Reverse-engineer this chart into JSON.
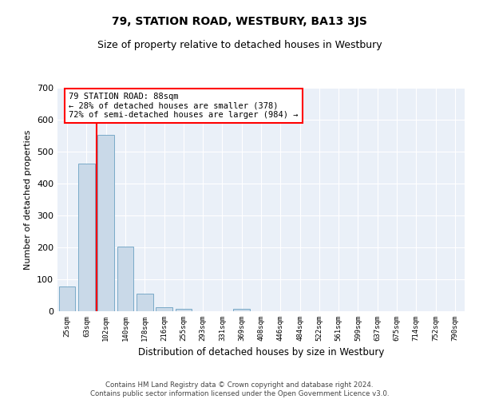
{
  "title": "79, STATION ROAD, WESTBURY, BA13 3JS",
  "subtitle": "Size of property relative to detached houses in Westbury",
  "xlabel": "Distribution of detached houses by size in Westbury",
  "ylabel": "Number of detached properties",
  "footer_line1": "Contains HM Land Registry data © Crown copyright and database right 2024.",
  "footer_line2": "Contains public sector information licensed under the Open Government Licence v3.0.",
  "categories": [
    "25sqm",
    "63sqm",
    "102sqm",
    "140sqm",
    "178sqm",
    "216sqm",
    "255sqm",
    "293sqm",
    "331sqm",
    "369sqm",
    "408sqm",
    "446sqm",
    "484sqm",
    "522sqm",
    "561sqm",
    "599sqm",
    "637sqm",
    "675sqm",
    "714sqm",
    "752sqm",
    "790sqm"
  ],
  "values": [
    78,
    463,
    553,
    203,
    55,
    13,
    7,
    0,
    0,
    8,
    0,
    0,
    0,
    0,
    0,
    0,
    0,
    0,
    0,
    0,
    0
  ],
  "bar_color": "#c9d9e8",
  "bar_edge_color": "#7aaac8",
  "annotation_text_line1": "79 STATION ROAD: 88sqm",
  "annotation_text_line2": "← 28% of detached houses are smaller (378)",
  "annotation_text_line3": "72% of semi-detached houses are larger (984) →",
  "annotation_box_color": "white",
  "annotation_box_edge": "red",
  "highlight_line_color": "red",
  "ylim": [
    0,
    700
  ],
  "yticks": [
    0,
    100,
    200,
    300,
    400,
    500,
    600,
    700
  ],
  "background_color": "#eaf0f8",
  "grid_color": "white",
  "title_fontsize": 10,
  "subtitle_fontsize": 9
}
